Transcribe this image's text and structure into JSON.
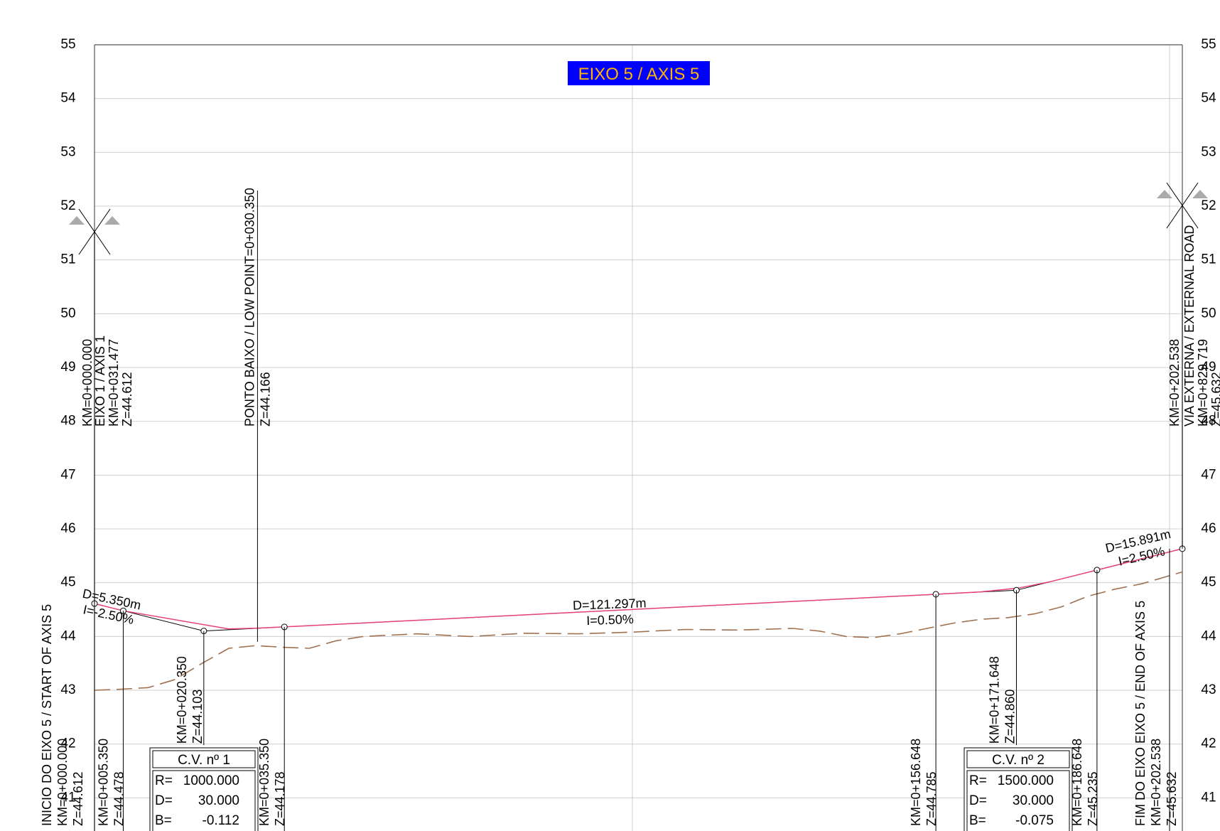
{
  "title": "EIXO 5 / AXIS 5",
  "colors": {
    "title_bg": "#0000ff",
    "title_text": "#ffb300",
    "design_line": "#e8407a",
    "terrain_line": "#a0714f",
    "grid": "#cfcfcf"
  },
  "chart_data": {
    "type": "line",
    "ylim": [
      40,
      55
    ],
    "xlim": [
      0,
      202.538
    ],
    "y_ticks": [
      "55",
      "54",
      "53",
      "52",
      "51",
      "50",
      "49",
      "48",
      "47",
      "46",
      "45",
      "44",
      "43",
      "42",
      "41"
    ],
    "y_ticks_right": [
      "55",
      "54",
      "53",
      "52",
      "51",
      "50",
      "49",
      "48",
      "47",
      "46",
      "45",
      "44",
      "43",
      "42",
      "41"
    ],
    "series": [
      {
        "role": "design-profile",
        "x": [
          0,
          5.35,
          20.35,
          35.35,
          156.648,
          171.648,
          186.648,
          202.538
        ],
        "y": [
          44.612,
          44.478,
          44.103,
          44.178,
          44.785,
          44.86,
          45.235,
          45.632
        ]
      },
      {
        "role": "terrain-profile",
        "x": [
          0,
          5,
          10,
          15,
          20,
          25,
          30,
          35,
          40,
          45,
          50,
          60,
          70,
          80,
          90,
          100,
          110,
          120,
          130,
          135,
          140,
          145,
          150,
          155,
          160,
          165,
          170,
          175,
          180,
          185,
          190,
          195,
          202.538
        ],
        "y": [
          43.0,
          43.02,
          43.05,
          43.2,
          43.5,
          43.78,
          43.83,
          43.8,
          43.78,
          43.92,
          44.0,
          44.05,
          44.0,
          44.06,
          44.05,
          44.08,
          44.13,
          44.12,
          44.15,
          44.1,
          44.0,
          43.98,
          44.05,
          44.15,
          44.25,
          44.32,
          44.35,
          44.42,
          44.55,
          44.75,
          44.88,
          44.98,
          45.2
        ]
      }
    ],
    "vertices": [
      0,
      5.35,
      20.35,
      35.35,
      156.648,
      171.648,
      186.648,
      202.538
    ],
    "segments": [
      {
        "d": "D=5.350m",
        "i": "I=-2.50%"
      },
      {
        "d": "D=121.297m",
        "i": "I=0.50%"
      },
      {
        "d": "D=15.891m",
        "i": "I=2.50%"
      }
    ],
    "leaders_bottom": [
      {
        "x": 0,
        "top_z": 44.612,
        "lines": [
          "INICIO DO EIXO 5 / START OF AXIS 5",
          "KM=0+000.000",
          "Z=44.612"
        ]
      },
      {
        "x": 5.35,
        "top_z": 44.478,
        "lines": [
          "KM=0+005.350",
          "Z=44.478"
        ]
      },
      {
        "x": 20.35,
        "top_z": 44.103,
        "lines": [
          "KM=0+020.350",
          "Z=44.103"
        ]
      },
      {
        "x": 35.35,
        "top_z": 44.178,
        "lines": [
          "KM=0+035.350",
          "Z=44.178"
        ]
      },
      {
        "x": 156.648,
        "top_z": 44.785,
        "lines": [
          "KM=0+156.648",
          "Z=44.785"
        ]
      },
      {
        "x": 171.648,
        "top_z": 44.86,
        "lines": [
          "KM=0+171.648",
          "Z=44.860"
        ]
      },
      {
        "x": 186.648,
        "top_z": 45.235,
        "lines": [
          "KM=0+186.648",
          "Z=45.235"
        ]
      },
      {
        "x": 202.538,
        "top_z": 45.632,
        "lines": [
          "FIM DO EIXO EIXO 5 / END OF AXIS 5",
          "KM=0+202.538",
          "Z=45.632"
        ]
      }
    ],
    "leaders_top": [
      {
        "x": 0,
        "lines": [
          "KM=0+000.000"
        ]
      },
      {
        "x": 0,
        "lines": [
          "EIXO 1 / AXIS 1",
          "KM=0+031.477",
          "Z=44.612"
        ]
      },
      {
        "x": 30.35,
        "lines": [
          "PONTO BAIXO / LOW POINT=0+030.350",
          "Z=44.166"
        ]
      },
      {
        "x": 202.538,
        "lines": [
          "KM=0+202.538"
        ]
      },
      {
        "x": 202.538,
        "lines": [
          "VIA EXTERNA / EXTERNAL ROAD",
          "KM=0+829.719",
          "Z=45.632"
        ]
      }
    ],
    "curves": [
      {
        "title": "C.V. nº",
        "number": "1",
        "r_label": "R=",
        "r": "1000.000",
        "d_label": "D=",
        "d": "30.000",
        "b_label": "B=",
        "b": "-0.112"
      },
      {
        "title": "C.V. nº",
        "number": "2",
        "r_label": "R=",
        "r": "1500.000",
        "d_label": "D=",
        "d": "30.000",
        "b_label": "B=",
        "b": "-0.075"
      }
    ],
    "grid": true
  }
}
